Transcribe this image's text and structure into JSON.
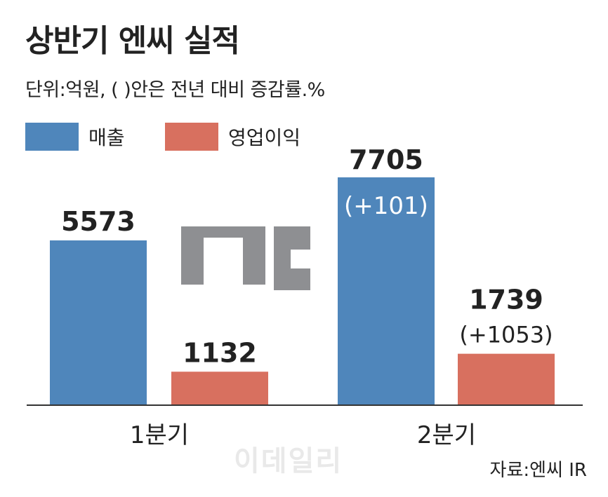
{
  "chart_data": {
    "type": "bar",
    "title": "상반기 엔씨 실적",
    "subtitle": "단위:억원, (  )안은 전년 대비 증감률.%",
    "categories": [
      "1분기",
      "2분기"
    ],
    "series": [
      {
        "name": "매출",
        "color": "#4f86bb",
        "values": [
          5573,
          7705
        ],
        "changes": [
          "",
          "(+101)"
        ]
      },
      {
        "name": "영업이익",
        "color": "#d8705f",
        "values": [
          1132,
          1739
        ],
        "changes": [
          "",
          "(+1053)"
        ]
      }
    ],
    "value_labels": [
      [
        "5573",
        "7705"
      ],
      [
        "1132",
        "1739"
      ]
    ],
    "ylim": [
      0,
      7705
    ],
    "grid": false,
    "legend_position": "top-left",
    "source": "자료:엔씨 IR",
    "watermark": "이데일리",
    "logo": {
      "name": "nc-logo",
      "text": "nc",
      "color": "#8e8f92"
    }
  }
}
